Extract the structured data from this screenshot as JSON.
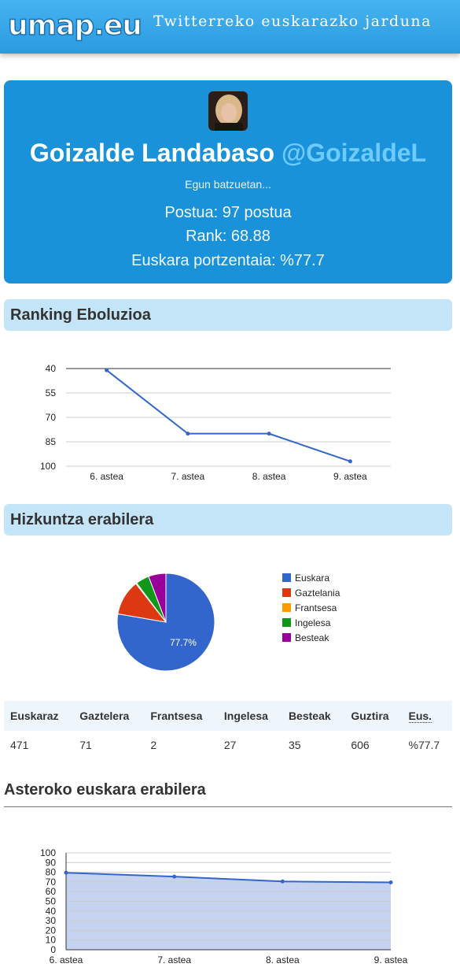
{
  "header": {
    "logo_text": "umap.eu",
    "tagline": "Twitterreko euskarazko jarduna"
  },
  "profile": {
    "name": "Goizalde Landabaso",
    "handle": "@GoizaldeL",
    "bio": "Egun batzuetan...",
    "postua": "Postua: 97 postua",
    "rank": "Rank: 68.88",
    "euskara": "Euskara portzentaia: %77.7"
  },
  "ranking": {
    "title": "Ranking Eboluzioa"
  },
  "hizkuntza": {
    "title": "Hizkuntza erabilera"
  },
  "table": {
    "headers": [
      "Euskaraz",
      "Gaztelera",
      "Frantsesa",
      "Ingelesa",
      "Besteak",
      "Guztira",
      "Eus."
    ],
    "row": [
      "471",
      "71",
      "2",
      "27",
      "35",
      "606",
      "%77.7"
    ]
  },
  "asteroko": {
    "title": "Asteroko euskara erabilera"
  },
  "chart_data": [
    {
      "type": "line",
      "x": [
        "6. astea",
        "7. astea",
        "8. astea",
        "9. astea"
      ],
      "values": [
        41,
        80,
        80,
        97
      ],
      "yticks": [
        40,
        55,
        70,
        85,
        100
      ],
      "ylim": [
        40,
        100
      ],
      "y_inverted": true,
      "color": "#3366cc"
    },
    {
      "type": "pie",
      "labels": [
        "Euskara",
        "Gaztelania",
        "Frantsesa",
        "Ingelesa",
        "Besteak"
      ],
      "values": [
        471,
        71,
        2,
        27,
        35
      ],
      "colors": [
        "#3366cc",
        "#dc3912",
        "#ff9900",
        "#109618",
        "#990099"
      ],
      "slice_label": "77.7%",
      "legend": "right"
    },
    {
      "type": "area",
      "x": [
        "6. astea",
        "7. astea",
        "8. astea",
        "9. astea"
      ],
      "values": [
        79.5,
        75.5,
        70.5,
        69.5
      ],
      "yticks": [
        0,
        10,
        20,
        30,
        40,
        50,
        60,
        70,
        80,
        90,
        100
      ],
      "ylim": [
        0,
        100
      ],
      "color": "#3366cc",
      "fill": "#c5d3f0"
    }
  ]
}
